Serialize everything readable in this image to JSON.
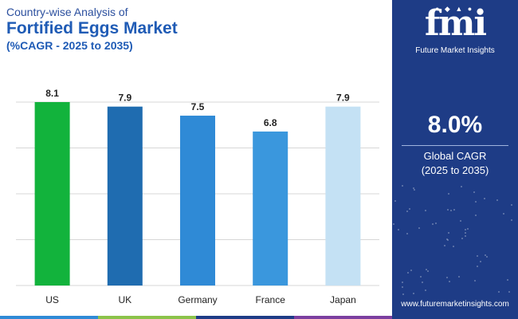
{
  "header": {
    "subtitle": "Country-wise Analysis of",
    "title": "Fortified Eggs Market",
    "cagr_note": "(%CAGR - 2025 to 2035)"
  },
  "chart_data": {
    "type": "bar",
    "categories": [
      "US",
      "UK",
      "Germany",
      "France",
      "Japan"
    ],
    "values": [
      8.1,
      7.9,
      7.5,
      6.8,
      7.9
    ],
    "value_labels": [
      "8.1",
      "7.9",
      "7.5",
      "6.8",
      "7.9"
    ],
    "bar_colors": [
      "#12b33c",
      "#1f6cb0",
      "#2f8ad6",
      "#3a97dd",
      "#c4e1f4"
    ],
    "ylim": [
      0,
      8.1
    ],
    "grid": true,
    "xlabel": "",
    "ylabel": ""
  },
  "side_panel": {
    "logo_text": "fmi",
    "logo_caption": "Future Market Insights",
    "global_value": "8.0%",
    "global_label": "Global CAGR",
    "global_period": "(2025 to 2035)",
    "website": "www.futuremarketinsights.com"
  },
  "colors": {
    "panel_bg": "#1e3c86",
    "title": "#1f5bb5",
    "footer": [
      "#2f8ad6",
      "#8bc34a",
      "#1e3c86",
      "#7b3fa0"
    ]
  }
}
